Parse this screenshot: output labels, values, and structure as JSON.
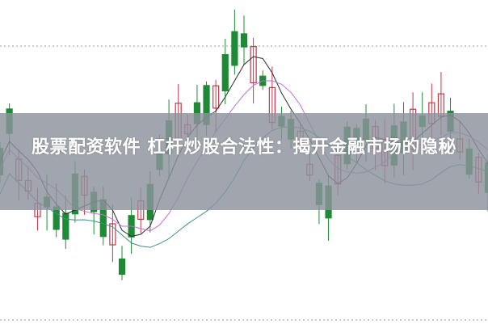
{
  "title": "股票配资软件 杠杆炒股合法性：揭开金融市场的隐秘",
  "colors": {
    "up_candle": "#c0394b",
    "down_candle": "#1e8a36",
    "ma_short": "#2c2c2c",
    "ma_mid": "#c070d0",
    "ma_long": "#3a8f8a",
    "overlay": "#8c929c"
  },
  "background": "candlestick-chart-image"
}
